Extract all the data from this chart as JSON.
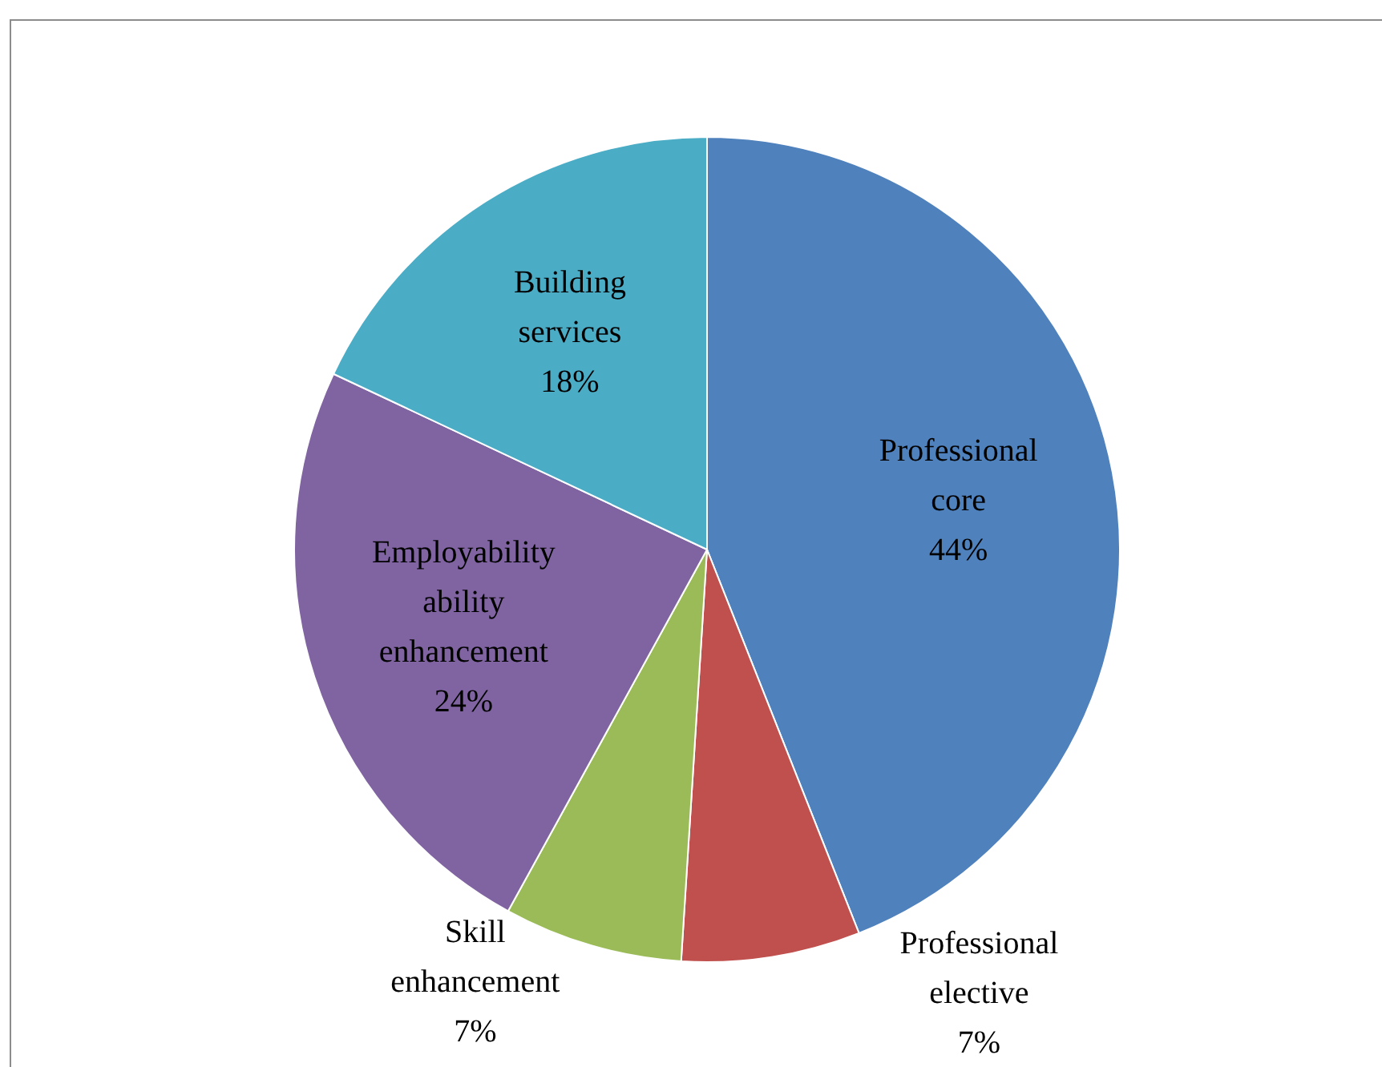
{
  "chart_data": {
    "type": "pie",
    "categories": [
      "Professional core",
      "Professional elective",
      "Skill enhancement",
      "Employability ability enhancement",
      "Building services"
    ],
    "values": [
      44,
      7,
      7,
      24,
      18
    ],
    "colors": [
      "#4f81bd",
      "#c0504d",
      "#9bbb59",
      "#8064a2",
      "#4bacc6"
    ],
    "value_labels": [
      "44%",
      "7%",
      "7%",
      "24%",
      "18%"
    ],
    "legend": false
  }
}
